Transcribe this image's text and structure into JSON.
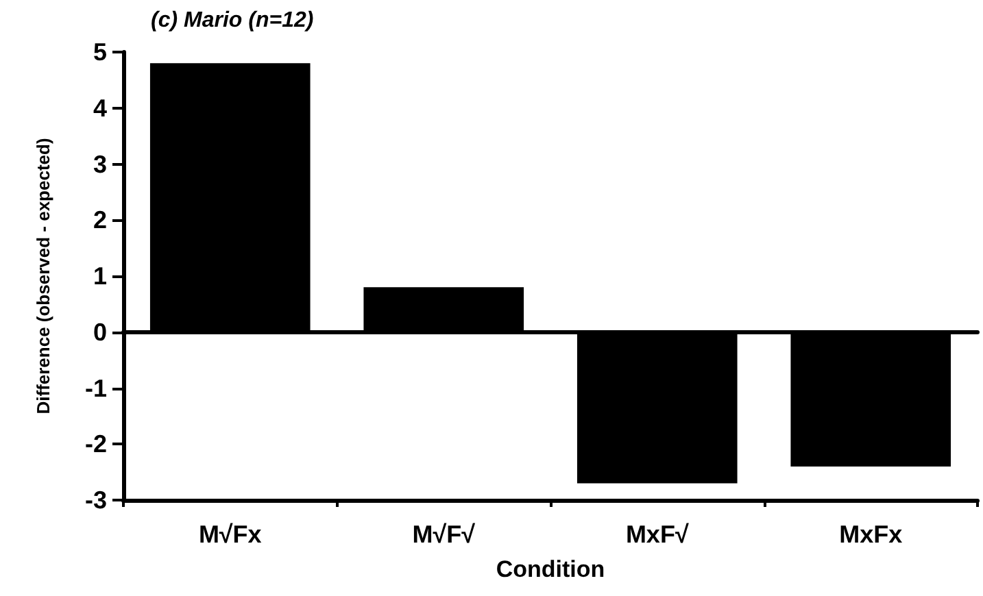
{
  "chart_data": {
    "type": "bar",
    "title": "(c) Mario (n=12)",
    "xlabel": "Condition",
    "ylabel": "Difference (observed - expected)",
    "categories": [
      "M√Fx",
      "M√F√",
      "MxF√",
      "MxFx"
    ],
    "values": [
      4.8,
      0.8,
      -2.7,
      -2.4
    ],
    "color": "#000000",
    "ylim": [
      -3,
      5
    ],
    "yticks": [
      -3,
      -2,
      -1,
      0,
      1,
      2,
      3,
      4,
      5
    ]
  }
}
